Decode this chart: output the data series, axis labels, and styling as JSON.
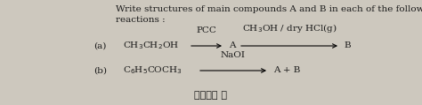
{
  "bg_color": "#cdc8be",
  "text_color": "#1a1a1a",
  "title_line1": "Write structures of main compounds A and B in each of the following",
  "title_line2": "reactions :",
  "label_a": "(a)",
  "label_b": "(b)",
  "reaction_a_reactant": "CH$_3$CH$_2$OH",
  "reaction_a_mid": "A",
  "reaction_a_product": "B",
  "reaction_a_reagent1": "PCC",
  "reaction_a_reagent2": "CH$_3$OH / dry HCl(g)",
  "reaction_b_reactant": "C$_6$H$_5$COCH$_3$",
  "reaction_b_product": "A + B",
  "reaction_b_reagent": "NaOI",
  "footer": "खण्ड स",
  "fontsize": 7.5
}
